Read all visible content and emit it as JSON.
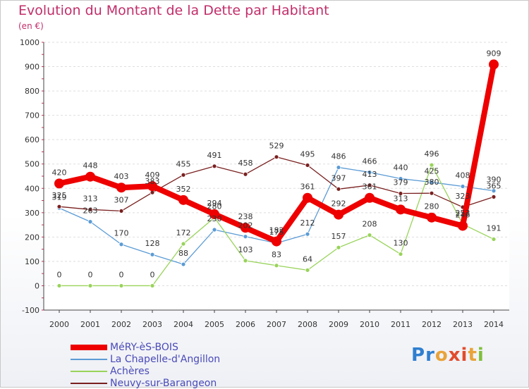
{
  "title": "Evolution du Montant de la Dette par Habitant",
  "subtitle": "(en €)",
  "logo": {
    "text": "Proxiti",
    "letters": [
      {
        "ch": "P",
        "color": "#2f7fd0"
      },
      {
        "ch": "r",
        "color": "#2f7fd0"
      },
      {
        "ch": "o",
        "color": "#e8a33a"
      },
      {
        "ch": "x",
        "color": "#e24b2c"
      },
      {
        "ch": "i",
        "color": "#e24b2c"
      },
      {
        "ch": "t",
        "color": "#e8a33a"
      },
      {
        "ch": "i",
        "color": "#7fbf3a"
      }
    ]
  },
  "chart_data": {
    "type": "line",
    "title": "Evolution du Montant de la Dette par Habitant",
    "subtitle": "(en €)",
    "x": [
      "2000",
      "2001",
      "2002",
      "2003",
      "2004",
      "2005",
      "2006",
      "2007",
      "2008",
      "2009",
      "2010",
      "2011",
      "2012",
      "2013",
      "2014"
    ],
    "ylim": [
      -100,
      1000
    ],
    "yticks": [
      -100,
      0,
      100,
      200,
      300,
      400,
      500,
      600,
      700,
      800,
      900,
      1000
    ],
    "grid": "horizontal",
    "legend_position": "bottom-left",
    "series": [
      {
        "name": "MéRY-èS-BOIS",
        "color": "#ee0000",
        "emphasis": true,
        "values": [
          420,
          448,
          403,
          409,
          352,
          294,
          238,
          182,
          361,
          292,
          361,
          313,
          280,
          246,
          909
        ],
        "labels": [
          "420",
          "448",
          "403",
          "409",
          "352",
          "294",
          "238",
          "182",
          "361",
          "292",
          "361",
          "313",
          "280",
          "246",
          "909"
        ]
      },
      {
        "name": "La Chapelle-d'Angillon",
        "color": "#5b9bd5",
        "values": [
          319,
          263,
          170,
          128,
          88,
          230,
          202,
          175,
          212,
          486,
          466,
          440,
          425,
          408,
          390
        ],
        "labels": [
          "319",
          "263",
          "170",
          "128",
          "88",
          "230",
          "202",
          "175",
          "212",
          "486",
          "466",
          "440",
          "425",
          "408",
          "390"
        ]
      },
      {
        "name": "Achères",
        "color": "#99d35a",
        "values": [
          0,
          0,
          0,
          0,
          172,
          280,
          103,
          83,
          64,
          157,
          208,
          130,
          496,
          253,
          191
        ],
        "labels": [
          "0",
          "0",
          "0",
          "0",
          "172",
          "280",
          "103",
          "83",
          "64",
          "157",
          "208",
          "130",
          "496",
          "253",
          "191"
        ]
      },
      {
        "name": "Neuvy-sur-Barangeon",
        "color": "#7a2020",
        "values": [
          325,
          313,
          307,
          383,
          455,
          491,
          458,
          529,
          495,
          397,
          413,
          379,
          380,
          323,
          365
        ],
        "labels": [
          "325",
          "313",
          "307",
          "383",
          "455",
          "491",
          "458",
          "529",
          "495",
          "397",
          "413",
          "379",
          "380",
          "323",
          "365"
        ]
      }
    ]
  }
}
